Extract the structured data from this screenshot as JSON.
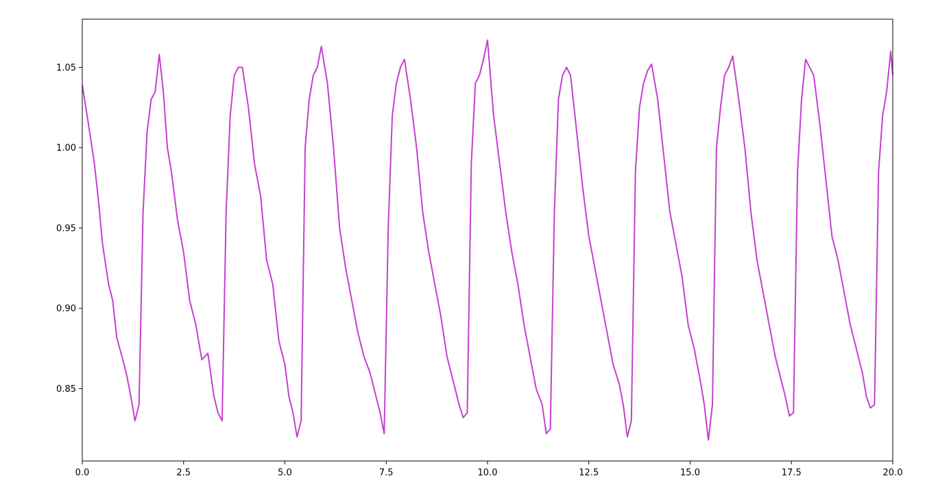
{
  "chart_data": {
    "type": "line",
    "title": "",
    "xlabel": "",
    "ylabel": "",
    "xlim": [
      0,
      20
    ],
    "ylim": [
      0.805,
      1.08
    ],
    "grid": false,
    "x_ticks": [
      0,
      2.5,
      5,
      7.5,
      10,
      12.5,
      15,
      17.5,
      20
    ],
    "x_tick_labels": [
      "0.0",
      "2.5",
      "5.0",
      "7.5",
      "10.0",
      "12.5",
      "15.0",
      "17.5",
      "20.0"
    ],
    "y_ticks": [
      0.85,
      0.9,
      0.95,
      1.0,
      1.05
    ],
    "y_tick_labels": [
      "0.85",
      "0.90",
      "0.95",
      "1.00",
      "1.05"
    ],
    "series": [
      {
        "color": "#c43fd0",
        "x": [
          0.0,
          0.15,
          0.3,
          0.4,
          0.5,
          0.65,
          0.75,
          0.85,
          1.0,
          1.1,
          1.2,
          1.3,
          1.4,
          1.5,
          1.6,
          1.7,
          1.8,
          1.9,
          2.0,
          2.1,
          2.2,
          2.35,
          2.5,
          2.65,
          2.8,
          2.95,
          3.1,
          3.25,
          3.35,
          3.45,
          3.55,
          3.65,
          3.75,
          3.85,
          3.95,
          4.1,
          4.25,
          4.4,
          4.55,
          4.7,
          4.85,
          5.0,
          5.1,
          5.2,
          5.3,
          5.4,
          5.5,
          5.6,
          5.7,
          5.8,
          5.9,
          6.05,
          6.2,
          6.35,
          6.5,
          6.65,
          6.8,
          6.95,
          7.1,
          7.25,
          7.35,
          7.45,
          7.55,
          7.65,
          7.75,
          7.85,
          7.95,
          8.1,
          8.25,
          8.4,
          8.55,
          8.7,
          8.85,
          9.0,
          9.15,
          9.3,
          9.4,
          9.5,
          9.6,
          9.7,
          9.8,
          9.9,
          10.0,
          10.15,
          10.3,
          10.45,
          10.6,
          10.75,
          10.9,
          11.05,
          11.2,
          11.35,
          11.45,
          11.55,
          11.65,
          11.75,
          11.85,
          11.95,
          12.05,
          12.2,
          12.35,
          12.5,
          12.65,
          12.8,
          12.95,
          13.1,
          13.25,
          13.35,
          13.45,
          13.55,
          13.65,
          13.75,
          13.85,
          13.95,
          14.05,
          14.2,
          14.35,
          14.5,
          14.65,
          14.8,
          14.95,
          15.1,
          15.25,
          15.35,
          15.45,
          15.55,
          15.65,
          15.75,
          15.85,
          15.95,
          16.05,
          16.2,
          16.35,
          16.5,
          16.65,
          16.8,
          16.95,
          17.1,
          17.25,
          17.35,
          17.45,
          17.55,
          17.65,
          17.75,
          17.85,
          17.95,
          18.05,
          18.2,
          18.35,
          18.5,
          18.65,
          18.8,
          18.95,
          19.1,
          19.25,
          19.35,
          19.45,
          19.55,
          19.65,
          19.75,
          19.85,
          19.95,
          20.0
        ],
        "y": [
          1.039,
          1.015,
          0.99,
          0.967,
          0.94,
          0.915,
          0.905,
          0.882,
          0.868,
          0.858,
          0.845,
          0.83,
          0.84,
          0.96,
          1.01,
          1.03,
          1.035,
          1.058,
          1.035,
          1.0,
          0.985,
          0.955,
          0.935,
          0.905,
          0.89,
          0.868,
          0.872,
          0.845,
          0.835,
          0.83,
          0.96,
          1.02,
          1.045,
          1.05,
          1.05,
          1.025,
          0.99,
          0.97,
          0.93,
          0.915,
          0.88,
          0.865,
          0.845,
          0.835,
          0.82,
          0.83,
          1.0,
          1.03,
          1.045,
          1.05,
          1.063,
          1.04,
          1.0,
          0.95,
          0.925,
          0.905,
          0.885,
          0.87,
          0.86,
          0.845,
          0.835,
          0.822,
          0.95,
          1.02,
          1.04,
          1.05,
          1.055,
          1.03,
          1.0,
          0.96,
          0.935,
          0.915,
          0.895,
          0.87,
          0.855,
          0.84,
          0.832,
          0.835,
          0.99,
          1.04,
          1.045,
          1.055,
          1.067,
          1.02,
          0.99,
          0.96,
          0.935,
          0.915,
          0.89,
          0.87,
          0.85,
          0.84,
          0.822,
          0.825,
          0.96,
          1.03,
          1.045,
          1.05,
          1.045,
          1.01,
          0.975,
          0.945,
          0.925,
          0.905,
          0.885,
          0.865,
          0.853,
          0.84,
          0.82,
          0.83,
          0.985,
          1.025,
          1.04,
          1.048,
          1.052,
          1.03,
          0.995,
          0.96,
          0.94,
          0.92,
          0.89,
          0.875,
          0.855,
          0.84,
          0.818,
          0.84,
          1.0,
          1.025,
          1.045,
          1.05,
          1.057,
          1.03,
          1.0,
          0.96,
          0.93,
          0.91,
          0.89,
          0.87,
          0.855,
          0.845,
          0.833,
          0.835,
          0.985,
          1.03,
          1.055,
          1.05,
          1.045,
          1.015,
          0.98,
          0.945,
          0.93,
          0.91,
          0.89,
          0.875,
          0.86,
          0.845,
          0.838,
          0.84,
          0.985,
          1.02,
          1.035,
          1.06,
          1.045
        ]
      }
    ]
  }
}
